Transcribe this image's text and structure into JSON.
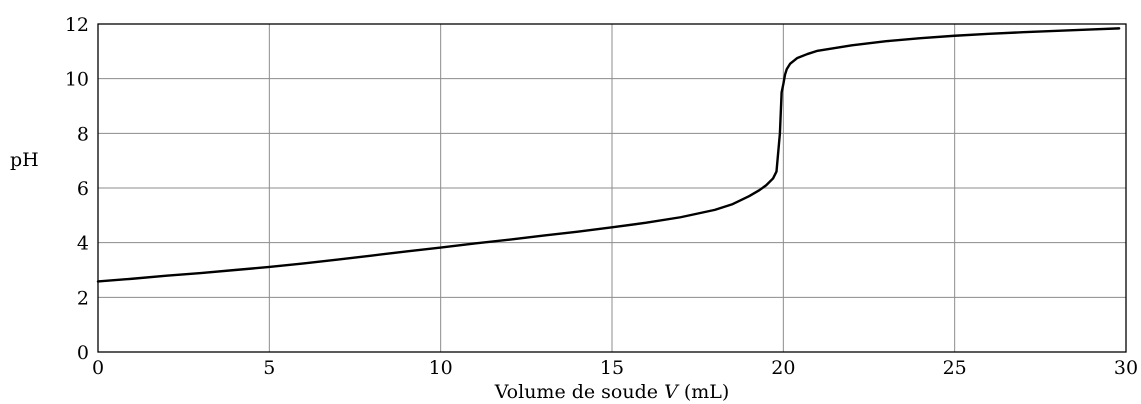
{
  "chart_data": {
    "type": "line",
    "xlabel_text": "Volume de soude ",
    "xlabel_var": "V",
    "xlabel_unit": " (mL)",
    "ylabel": "pH",
    "xlim": [
      0,
      30
    ],
    "ylim": [
      0,
      12
    ],
    "x_ticks": [
      0,
      5,
      10,
      15,
      20,
      25,
      30
    ],
    "y_ticks": [
      0,
      2,
      4,
      6,
      8,
      10,
      12
    ],
    "grid": true,
    "series": [
      {
        "x": [
          0,
          1,
          2,
          3,
          4,
          5,
          6,
          7,
          8,
          9,
          10,
          11,
          12,
          13,
          14,
          15,
          16,
          17,
          18,
          18.5,
          19,
          19.3,
          19.5,
          19.7,
          19.8,
          19.9,
          19.95,
          20.0,
          20.05,
          20.1,
          20.2,
          20.4,
          20.7,
          21,
          22,
          23,
          24,
          25,
          26,
          27,
          28,
          29,
          29.8
        ],
        "y": [
          2.58,
          2.68,
          2.79,
          2.89,
          3.0,
          3.11,
          3.24,
          3.38,
          3.53,
          3.68,
          3.82,
          3.97,
          4.11,
          4.26,
          4.4,
          4.56,
          4.73,
          4.93,
          5.2,
          5.4,
          5.7,
          5.92,
          6.1,
          6.35,
          6.6,
          8.0,
          9.5,
          9.8,
          10.15,
          10.35,
          10.55,
          10.75,
          10.9,
          11.02,
          11.22,
          11.37,
          11.48,
          11.57,
          11.64,
          11.7,
          11.75,
          11.8,
          11.84
        ]
      }
    ]
  }
}
